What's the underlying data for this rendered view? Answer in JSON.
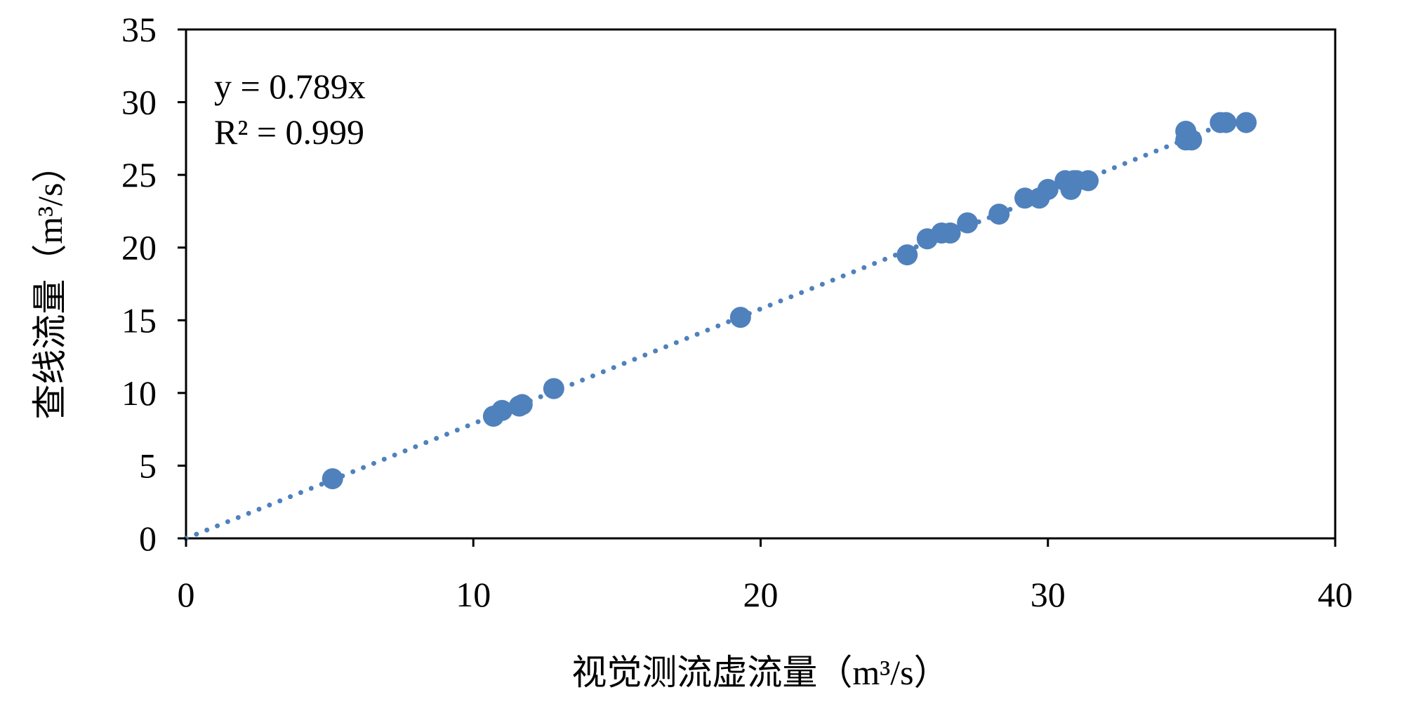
{
  "chart_data": {
    "type": "scatter",
    "xlabel": "视觉测流虚流量（m³/s）",
    "ylabel": "查线流量（m³/s）",
    "xlim": [
      0,
      40
    ],
    "ylim": [
      0,
      35
    ],
    "xticks": [
      0,
      10,
      20,
      30,
      40
    ],
    "yticks": [
      0,
      5,
      10,
      15,
      20,
      25,
      30,
      35
    ],
    "grid": false,
    "legend": "none",
    "colors": {
      "points": "#4f81bd",
      "trendline": "#4f81bd",
      "axes": "#000000"
    },
    "trendline": {
      "type": "linear-through-origin",
      "slope": 0.789,
      "style": "dotted",
      "x_range": [
        0,
        37
      ]
    },
    "annotations": {
      "equation": "y = 0.789x",
      "r_squared": "R² = 0.999"
    },
    "series": [
      {
        "x": [
          5.1,
          10.7,
          11.0,
          11.6,
          11.7,
          12.8,
          19.3,
          25.1,
          25.8,
          26.3,
          26.6,
          27.2,
          28.3,
          29.2,
          29.7,
          30.0,
          30.6,
          30.8,
          30.9,
          31.0,
          31.4,
          34.8,
          34.8,
          35.0,
          36.0,
          36.2,
          36.9
        ],
        "y": [
          4.1,
          8.4,
          8.8,
          9.1,
          9.2,
          10.3,
          15.2,
          19.5,
          20.6,
          21.0,
          21.0,
          21.7,
          22.3,
          23.4,
          23.4,
          24.0,
          24.6,
          24.0,
          24.6,
          24.6,
          24.6,
          28.0,
          27.4,
          27.4,
          28.6,
          28.6,
          28.6
        ]
      }
    ]
  }
}
